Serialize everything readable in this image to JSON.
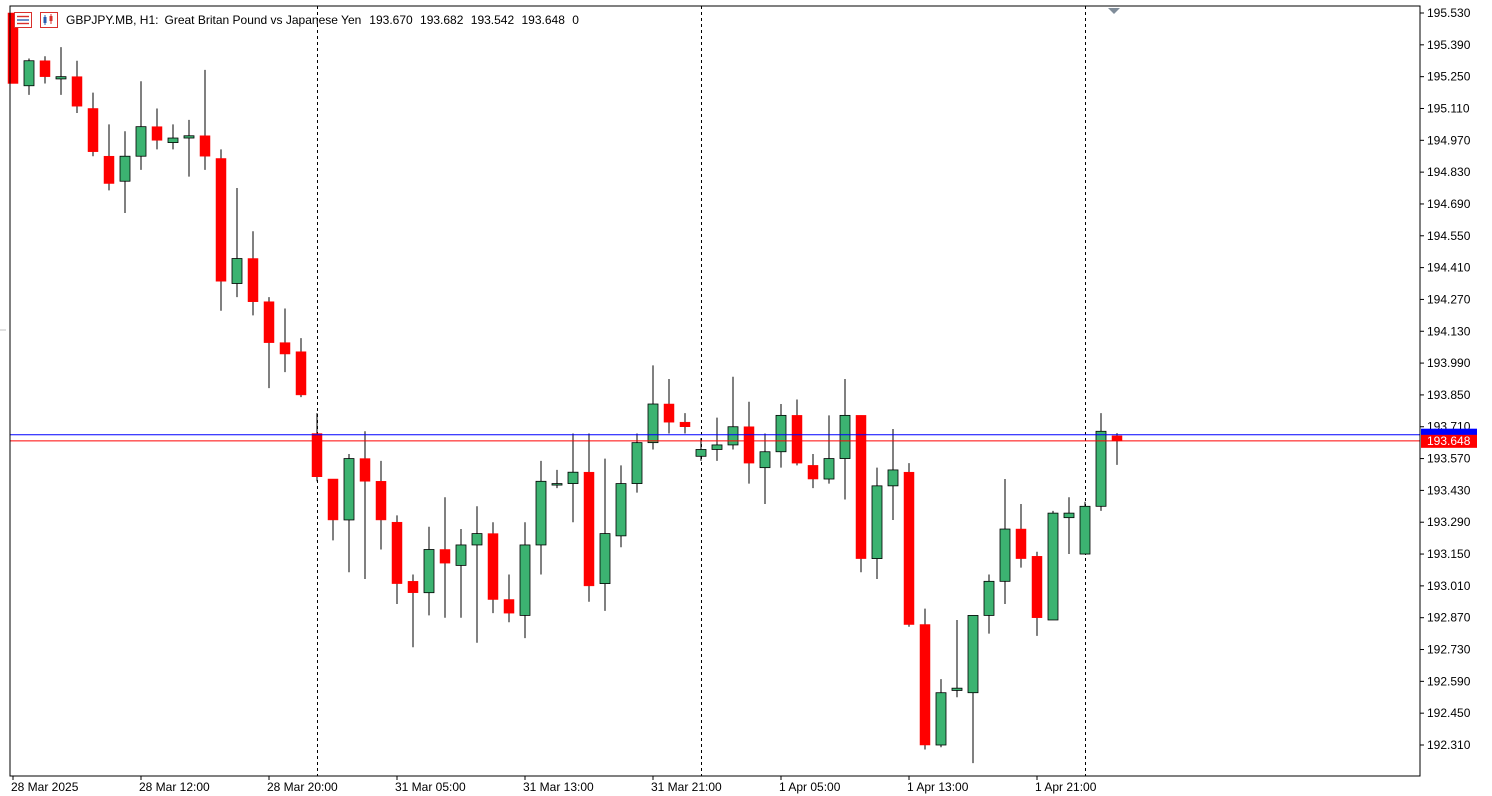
{
  "header": {
    "symbol": "GBPJPY.MB, H1:",
    "description": "Great Britan Pound vs Japanese Yen",
    "open": "193.670",
    "high": "193.682",
    "low": "193.542",
    "close": "193.648",
    "volume": "0",
    "icons": [
      "list-icon",
      "chart-type-icon"
    ]
  },
  "colors": {
    "bull": "#3cb371",
    "bear": "#ff0000",
    "bid_line": "#ff0000",
    "ask_line": "#0000ff",
    "grid_separator": "#000000",
    "background": "#ffffff"
  },
  "chart_data": {
    "type": "candlestick",
    "title": "",
    "xlabel": "",
    "ylabel": "",
    "ylim": [
      192.2,
      195.53
    ],
    "y_ticks": [
      "195.530",
      "195.390",
      "195.250",
      "195.110",
      "194.970",
      "194.830",
      "194.690",
      "194.550",
      "194.410",
      "194.270",
      "194.130",
      "193.990",
      "193.850",
      "193.710",
      "193.570",
      "193.430",
      "193.290",
      "193.150",
      "193.010",
      "192.870",
      "192.730",
      "192.590",
      "192.450",
      "192.310"
    ],
    "x_ticks": [
      "28 Mar 2025",
      "28 Mar 12:00",
      "28 Mar 20:00",
      "31 Mar 05:00",
      "31 Mar 13:00",
      "31 Mar 21:00",
      "1 Apr 05:00",
      "1 Apr 13:00",
      "1 Apr 21:00"
    ],
    "x_tick_index": [
      0,
      8,
      16,
      24,
      32,
      40,
      48,
      56,
      64
    ],
    "day_separators_index": [
      19,
      43,
      67
    ],
    "current_bid": "193.648",
    "current_ask": "193.675",
    "candles": [
      {
        "o": 195.53,
        "h": 195.53,
        "l": 195.22,
        "c": 195.22
      },
      {
        "o": 195.21,
        "h": 195.33,
        "l": 195.17,
        "c": 195.32
      },
      {
        "o": 195.32,
        "h": 195.34,
        "l": 195.22,
        "c": 195.25
      },
      {
        "o": 195.24,
        "h": 195.38,
        "l": 195.17,
        "c": 195.25
      },
      {
        "o": 195.25,
        "h": 195.32,
        "l": 195.09,
        "c": 195.12
      },
      {
        "o": 195.11,
        "h": 195.18,
        "l": 194.9,
        "c": 194.92
      },
      {
        "o": 194.9,
        "h": 195.04,
        "l": 194.75,
        "c": 194.78
      },
      {
        "o": 194.79,
        "h": 195.01,
        "l": 194.65,
        "c": 194.9
      },
      {
        "o": 194.9,
        "h": 195.23,
        "l": 194.84,
        "c": 195.03
      },
      {
        "o": 195.03,
        "h": 195.11,
        "l": 194.93,
        "c": 194.97
      },
      {
        "o": 194.96,
        "h": 195.04,
        "l": 194.93,
        "c": 194.98
      },
      {
        "o": 194.98,
        "h": 195.06,
        "l": 194.81,
        "c": 194.99
      },
      {
        "o": 194.99,
        "h": 195.28,
        "l": 194.84,
        "c": 194.9
      },
      {
        "o": 194.89,
        "h": 194.93,
        "l": 194.22,
        "c": 194.35
      },
      {
        "o": 194.34,
        "h": 194.76,
        "l": 194.28,
        "c": 194.45
      },
      {
        "o": 194.45,
        "h": 194.57,
        "l": 194.2,
        "c": 194.26
      },
      {
        "o": 194.26,
        "h": 194.28,
        "l": 193.88,
        "c": 194.08
      },
      {
        "o": 194.08,
        "h": 194.23,
        "l": 193.95,
        "c": 194.03
      },
      {
        "o": 194.04,
        "h": 194.1,
        "l": 193.84,
        "c": 193.85
      },
      {
        "o": 193.68,
        "h": 193.77,
        "l": 193.47,
        "c": 193.49
      },
      {
        "o": 193.48,
        "h": 193.48,
        "l": 193.21,
        "c": 193.3
      },
      {
        "o": 193.3,
        "h": 193.59,
        "l": 193.07,
        "c": 193.57
      },
      {
        "o": 193.57,
        "h": 193.69,
        "l": 193.04,
        "c": 193.47
      },
      {
        "o": 193.47,
        "h": 193.56,
        "l": 193.17,
        "c": 193.3
      },
      {
        "o": 193.29,
        "h": 193.32,
        "l": 192.93,
        "c": 193.02
      },
      {
        "o": 193.03,
        "h": 193.06,
        "l": 192.74,
        "c": 192.98
      },
      {
        "o": 192.98,
        "h": 193.27,
        "l": 192.88,
        "c": 193.17
      },
      {
        "o": 193.17,
        "h": 193.4,
        "l": 192.87,
        "c": 193.11
      },
      {
        "o": 193.1,
        "h": 193.26,
        "l": 192.87,
        "c": 193.19
      },
      {
        "o": 193.19,
        "h": 193.36,
        "l": 192.76,
        "c": 193.24
      },
      {
        "o": 193.24,
        "h": 193.29,
        "l": 192.89,
        "c": 192.95
      },
      {
        "o": 192.95,
        "h": 193.06,
        "l": 192.85,
        "c": 192.89
      },
      {
        "o": 192.88,
        "h": 193.29,
        "l": 192.78,
        "c": 193.19
      },
      {
        "o": 193.19,
        "h": 193.56,
        "l": 193.06,
        "c": 193.47
      },
      {
        "o": 193.46,
        "h": 193.52,
        "l": 193.44,
        "c": 193.46
      },
      {
        "o": 193.46,
        "h": 193.68,
        "l": 193.29,
        "c": 193.51
      },
      {
        "o": 193.51,
        "h": 193.68,
        "l": 192.94,
        "c": 193.01
      },
      {
        "o": 193.02,
        "h": 193.57,
        "l": 192.9,
        "c": 193.24
      },
      {
        "o": 193.23,
        "h": 193.54,
        "l": 193.18,
        "c": 193.46
      },
      {
        "o": 193.46,
        "h": 193.68,
        "l": 193.42,
        "c": 193.64
      },
      {
        "o": 193.64,
        "h": 193.98,
        "l": 193.61,
        "c": 193.81
      },
      {
        "o": 193.81,
        "h": 193.92,
        "l": 193.68,
        "c": 193.73
      },
      {
        "o": 193.73,
        "h": 193.77,
        "l": 193.68,
        "c": 193.71
      },
      {
        "o": 193.58,
        "h": 193.66,
        "l": 193.56,
        "c": 193.61
      },
      {
        "o": 193.61,
        "h": 193.75,
        "l": 193.56,
        "c": 193.63
      },
      {
        "o": 193.63,
        "h": 193.93,
        "l": 193.61,
        "c": 193.71
      },
      {
        "o": 193.71,
        "h": 193.82,
        "l": 193.46,
        "c": 193.55
      },
      {
        "o": 193.53,
        "h": 193.68,
        "l": 193.37,
        "c": 193.6
      },
      {
        "o": 193.6,
        "h": 193.81,
        "l": 193.53,
        "c": 193.76
      },
      {
        "o": 193.76,
        "h": 193.83,
        "l": 193.54,
        "c": 193.55
      },
      {
        "o": 193.54,
        "h": 193.59,
        "l": 193.44,
        "c": 193.48
      },
      {
        "o": 193.48,
        "h": 193.76,
        "l": 193.46,
        "c": 193.57
      },
      {
        "o": 193.57,
        "h": 193.92,
        "l": 193.39,
        "c": 193.76
      },
      {
        "o": 193.76,
        "h": 193.76,
        "l": 193.07,
        "c": 193.13
      },
      {
        "o": 193.13,
        "h": 193.53,
        "l": 193.04,
        "c": 193.45
      },
      {
        "o": 193.45,
        "h": 193.7,
        "l": 193.3,
        "c": 193.52
      },
      {
        "o": 193.51,
        "h": 193.55,
        "l": 192.83,
        "c": 192.84
      },
      {
        "o": 192.84,
        "h": 192.91,
        "l": 192.29,
        "c": 192.31
      },
      {
        "o": 192.31,
        "h": 192.6,
        "l": 192.3,
        "c": 192.54
      },
      {
        "o": 192.55,
        "h": 192.86,
        "l": 192.52,
        "c": 192.56
      },
      {
        "o": 192.54,
        "h": 192.87,
        "l": 192.23,
        "c": 192.88
      },
      {
        "o": 192.88,
        "h": 193.06,
        "l": 192.8,
        "c": 193.03
      },
      {
        "o": 193.03,
        "h": 193.48,
        "l": 192.93,
        "c": 193.26
      },
      {
        "o": 193.26,
        "h": 193.37,
        "l": 193.09,
        "c": 193.13
      },
      {
        "o": 193.14,
        "h": 193.16,
        "l": 192.79,
        "c": 192.87
      },
      {
        "o": 192.86,
        "h": 193.34,
        "l": 192.86,
        "c": 193.33
      },
      {
        "o": 193.31,
        "h": 193.4,
        "l": 193.15,
        "c": 193.33
      },
      {
        "o": 193.15,
        "h": 193.38,
        "l": 193.15,
        "c": 193.36
      },
      {
        "o": 193.36,
        "h": 193.77,
        "l": 193.34,
        "c": 193.69
      },
      {
        "o": 193.67,
        "h": 193.682,
        "l": 193.542,
        "c": 193.648
      }
    ]
  }
}
